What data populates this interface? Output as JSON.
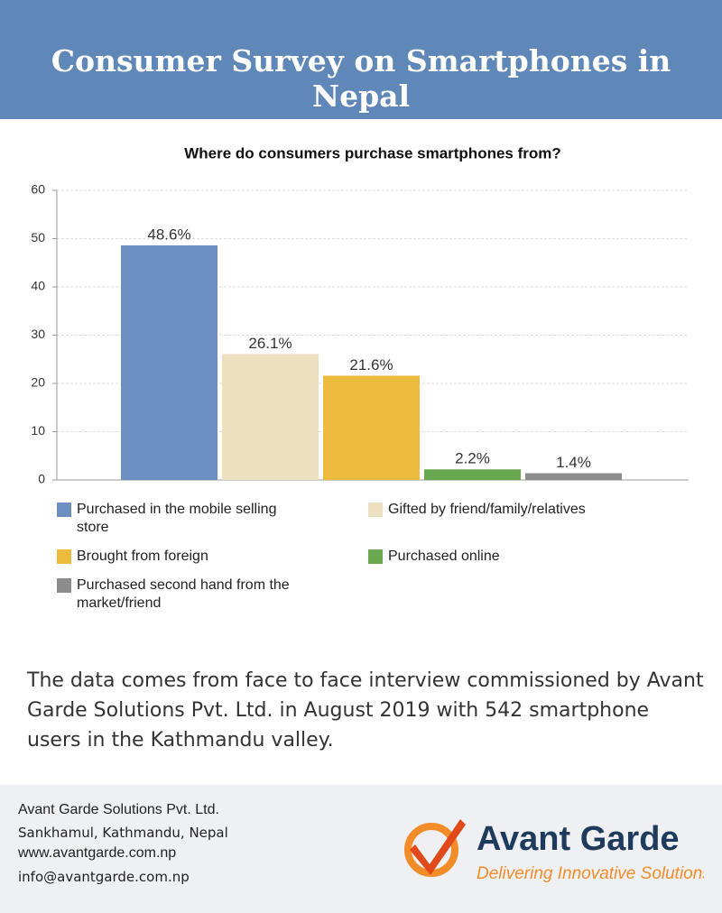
{
  "header": {
    "title": "Consumer Survey on Smartphones in Nepal"
  },
  "chart_data": {
    "type": "bar",
    "title": "Where do consumers purchase smartphones from?",
    "categories": [
      null
    ],
    "series": [
      {
        "name": "Purchased in the mobile selling store",
        "color": "#6a8fc0",
        "values": [
          48.6
        ],
        "value_labels": [
          "48.6%"
        ]
      },
      {
        "name": "Gifted by friend/family/relatives",
        "color": "#ede0c0",
        "values": [
          26.1
        ],
        "value_labels": [
          "26.1%"
        ]
      },
      {
        "name": "Brought from foreign",
        "color": "#ecba3c",
        "values": [
          21.6
        ],
        "value_labels": [
          "21.6%"
        ]
      },
      {
        "name": "Purchased online",
        "color": "#6aa84f",
        "values": [
          2.2
        ],
        "value_labels": [
          "2.2%"
        ]
      },
      {
        "name": "Purchased second hand from the market/friend",
        "color": "#8c8c8c",
        "values": [
          1.4
        ],
        "value_labels": [
          "1.4%"
        ]
      }
    ],
    "ylim": [
      0,
      60
    ],
    "yticks": [
      0,
      10,
      20,
      30,
      40,
      50,
      60
    ],
    "grid": true
  },
  "description": "The data comes from face to face interview commissioned by Avant Garde Solutions Pvt. Ltd. in August 2019 with 542 smartphone users in the Kathmandu valley.",
  "footer": {
    "company": "Avant Garde Solutions Pvt. Ltd.",
    "address": "Sankhamul, Kathmandu, Nepal",
    "website": "www.avantgarde.com.np",
    "email": "info@avantgarde.com.np"
  },
  "logo": {
    "name": "Avant Garde",
    "tagline": "Delivering Innovative Solutions"
  }
}
